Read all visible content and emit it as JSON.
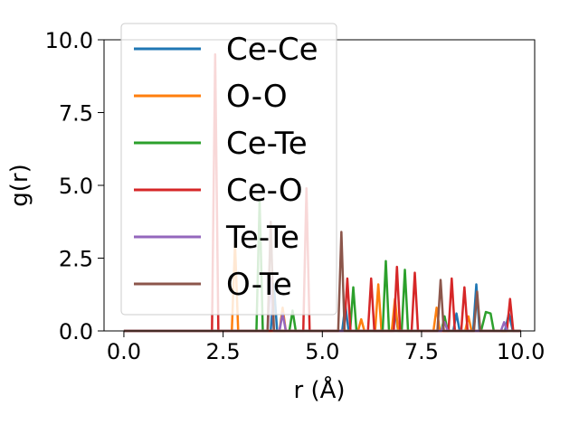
{
  "chart_data": {
    "type": "line",
    "xlabel": "r (Å)",
    "ylabel": "g(r)",
    "xlim": [
      -0.5,
      10.35
    ],
    "ylim": [
      0,
      10
    ],
    "x_ticks": [
      0.0,
      2.5,
      5.0,
      7.5,
      10.0
    ],
    "y_ticks": [
      0.0,
      2.5,
      5.0,
      7.5,
      10.0
    ],
    "x_tick_labels": [
      "0.0",
      "2.5",
      "5.0",
      "7.5",
      "10.0"
    ],
    "y_tick_labels": [
      "0.0",
      "2.5",
      "5.0",
      "7.5",
      "10.0"
    ],
    "grid": false,
    "legend_position": "top-left",
    "series": [
      {
        "name": "Ce-Ce",
        "color": "#1f77b4",
        "x": [
          0,
          3.7,
          3.78,
          3.86,
          5.5,
          5.58,
          5.66,
          6.75,
          6.83,
          6.91,
          8.3,
          8.38,
          8.46,
          8.8,
          8.88,
          8.96,
          9.6,
          9.7,
          9.8,
          10.0
        ],
        "y": [
          0,
          0,
          1.6,
          0,
          0,
          0.9,
          0,
          0,
          0.7,
          0,
          0,
          0.6,
          0,
          0,
          1.6,
          0,
          0,
          0.6,
          0,
          0
        ]
      },
      {
        "name": "O-O",
        "color": "#ff7f0e",
        "x": [
          0,
          2.72,
          2.8,
          2.88,
          3.92,
          4.0,
          4.08,
          5.9,
          5.98,
          6.06,
          6.33,
          6.41,
          6.49,
          6.75,
          6.83,
          6.91,
          7.8,
          7.88,
          7.96,
          8.6,
          8.68,
          8.76,
          10.0
        ],
        "y": [
          0,
          0,
          3.0,
          0,
          0,
          0.8,
          0,
          0,
          0.4,
          0,
          0,
          1.6,
          0,
          0,
          1.1,
          0,
          0,
          0.8,
          0,
          0,
          0.5,
          0,
          0
        ]
      },
      {
        "name": "Ce-Te",
        "color": "#2ca02c",
        "x": [
          0,
          3.34,
          3.42,
          3.5,
          4.17,
          4.25,
          4.33,
          5.7,
          5.78,
          5.86,
          6.52,
          6.6,
          6.68,
          7.0,
          7.08,
          7.16,
          8.0,
          8.08,
          8.16,
          9.0,
          9.12,
          9.24,
          9.32,
          10.0
        ],
        "y": [
          0,
          0,
          4.5,
          0,
          0,
          0.7,
          0,
          0,
          1.5,
          0,
          0,
          2.4,
          0,
          0,
          2.1,
          0,
          0,
          0.5,
          0,
          0,
          0.65,
          0.6,
          0,
          0
        ]
      },
      {
        "name": "Ce-O",
        "color": "#d62728",
        "x": [
          0,
          2.22,
          2.3,
          2.38,
          4.52,
          4.6,
          4.68,
          5.55,
          5.63,
          5.71,
          6.15,
          6.23,
          6.31,
          6.8,
          6.88,
          6.96,
          7.25,
          7.33,
          7.41,
          8.18,
          8.26,
          8.34,
          8.5,
          8.58,
          8.66,
          9.65,
          9.73,
          9.81,
          10.0
        ],
        "y": [
          0,
          0,
          9.5,
          0,
          0,
          4.9,
          0,
          0,
          1.8,
          0,
          0,
          1.8,
          0,
          0,
          2.2,
          0,
          0,
          2.0,
          0,
          0,
          1.8,
          0,
          0,
          1.5,
          0,
          0,
          1.1,
          0,
          0
        ]
      },
      {
        "name": "Te-Te",
        "color": "#9467bd",
        "x": [
          0,
          3.62,
          3.7,
          3.78,
          3.92,
          4.0,
          4.08,
          8.0,
          8.08,
          8.16,
          9.5,
          9.58,
          9.66,
          10.0
        ],
        "y": [
          0,
          0,
          1.8,
          0,
          0,
          0.6,
          0,
          0,
          0.3,
          0,
          0,
          0.3,
          0,
          0
        ]
      },
      {
        "name": "O-Te",
        "color": "#8c564b",
        "x": [
          0,
          3.62,
          3.7,
          3.78,
          5.4,
          5.48,
          5.56,
          7.9,
          7.98,
          8.06,
          8.82,
          8.9,
          8.98,
          10.0
        ],
        "y": [
          0,
          0,
          3.75,
          0,
          0,
          3.4,
          0,
          0,
          1.75,
          0,
          0,
          1.35,
          0,
          0
        ]
      }
    ]
  }
}
